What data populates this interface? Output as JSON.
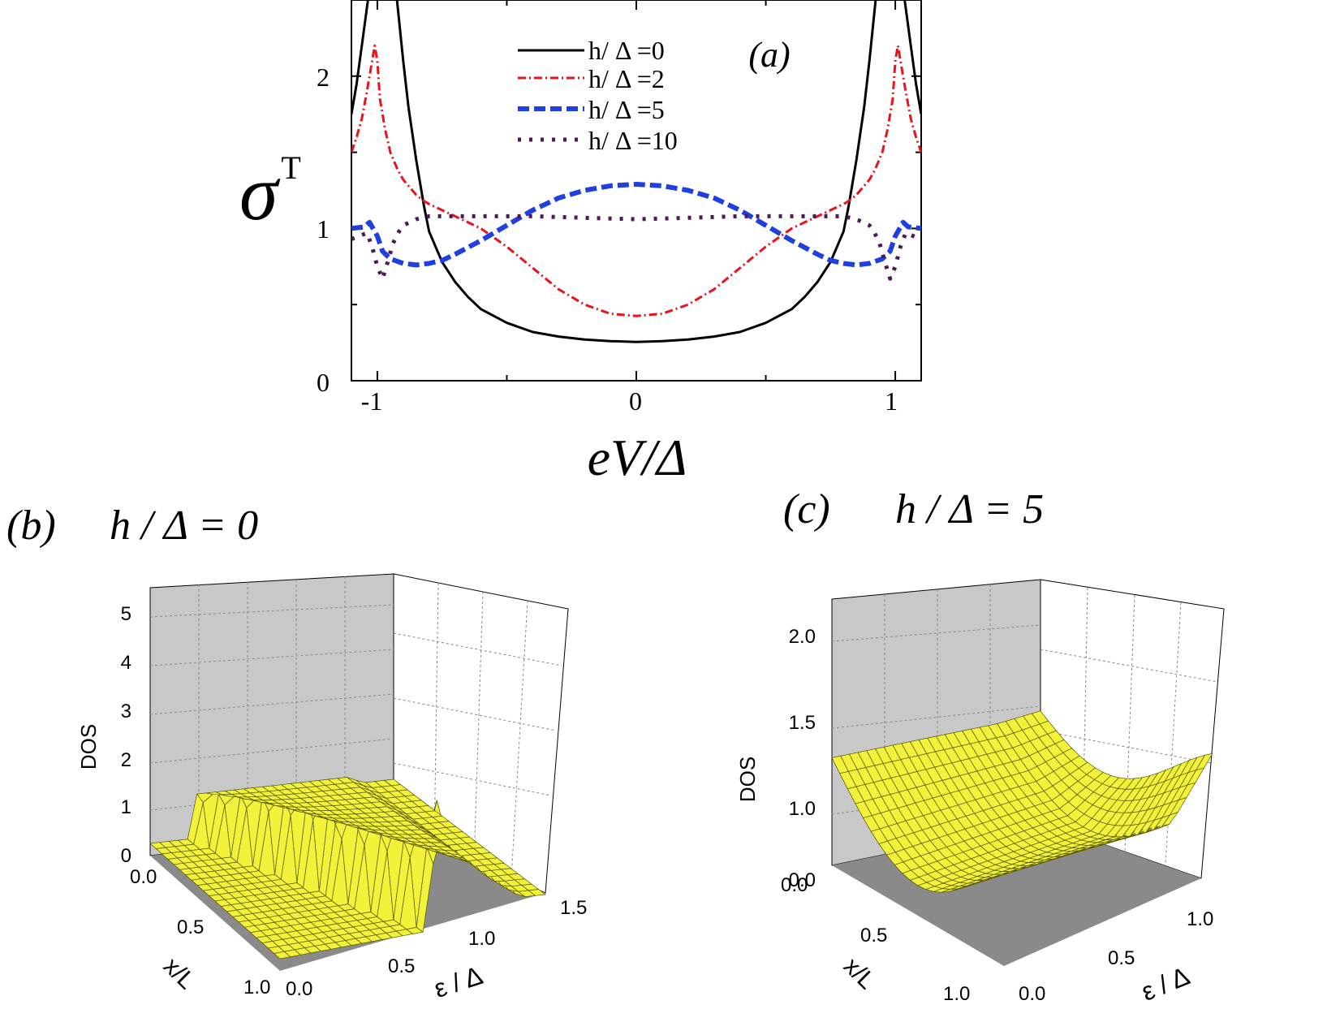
{
  "chart_data": [
    {
      "panel": "(a)",
      "type": "line",
      "panel_label": "(a)",
      "xlabel": "eV/Δ",
      "ylabel": "σ",
      "ylabel_sub": "T",
      "xlim": [
        -1.1,
        1.1
      ],
      "ylim": [
        0,
        2.5
      ],
      "xticks": [
        -1,
        0,
        1
      ],
      "xtick_labels": [
        "-1",
        "0",
        "1"
      ],
      "yticks": [
        0,
        1,
        2
      ],
      "ytick_labels": [
        "0",
        "1",
        "2"
      ],
      "legend_position": "top-center",
      "series": [
        {
          "name": "h/ Δ =0",
          "color": "#000000",
          "style": "solid",
          "x": [
            -1.1,
            -1.08,
            -1.06,
            -1.04,
            -1.02,
            -1.0,
            -0.97,
            -0.95,
            -0.93,
            -0.9,
            -0.88,
            -0.85,
            -0.82,
            -0.8,
            -0.77,
            -0.75,
            -0.7,
            -0.65,
            -0.6,
            -0.5,
            -0.4,
            -0.3,
            -0.2,
            -0.1,
            0.0,
            0.1,
            0.2,
            0.3,
            0.4,
            0.5,
            0.6,
            0.65,
            0.7,
            0.75,
            0.77,
            0.8,
            0.82,
            0.85,
            0.88,
            0.9,
            0.93,
            0.95,
            0.97,
            1.0,
            1.02,
            1.04,
            1.06,
            1.08,
            1.1
          ],
          "y": [
            1.75,
            1.95,
            2.2,
            2.45,
            2.7,
            3.0,
            3.2,
            2.9,
            2.6,
            2.1,
            1.8,
            1.45,
            1.15,
            0.98,
            0.86,
            0.78,
            0.65,
            0.55,
            0.47,
            0.38,
            0.32,
            0.29,
            0.27,
            0.26,
            0.255,
            0.26,
            0.27,
            0.29,
            0.32,
            0.38,
            0.47,
            0.55,
            0.65,
            0.78,
            0.86,
            0.98,
            1.15,
            1.45,
            1.8,
            2.1,
            2.6,
            2.9,
            3.2,
            3.0,
            2.7,
            2.45,
            2.2,
            1.95,
            1.75
          ]
        },
        {
          "name": "h/ Δ =2",
          "color": "#e8141b",
          "style": "dash-dot",
          "x": [
            -1.1,
            -1.08,
            -1.06,
            -1.04,
            -1.02,
            -1.01,
            -1.0,
            -0.99,
            -0.97,
            -0.95,
            -0.92,
            -0.9,
            -0.87,
            -0.85,
            -0.82,
            -0.8,
            -0.75,
            -0.7,
            -0.65,
            -0.6,
            -0.5,
            -0.4,
            -0.3,
            -0.2,
            -0.1,
            0.0,
            0.1,
            0.2,
            0.3,
            0.4,
            0.5,
            0.6,
            0.65,
            0.7,
            0.75,
            0.8,
            0.82,
            0.85,
            0.87,
            0.9,
            0.92,
            0.95,
            0.97,
            0.99,
            1.0,
            1.01,
            1.02,
            1.04,
            1.06,
            1.08,
            1.1
          ],
          "y": [
            1.5,
            1.6,
            1.72,
            1.9,
            2.1,
            2.2,
            2.1,
            1.85,
            1.65,
            1.5,
            1.38,
            1.32,
            1.26,
            1.22,
            1.18,
            1.16,
            1.12,
            1.08,
            1.04,
            1.0,
            0.88,
            0.74,
            0.6,
            0.5,
            0.44,
            0.425,
            0.44,
            0.5,
            0.6,
            0.74,
            0.88,
            1.0,
            1.04,
            1.08,
            1.12,
            1.16,
            1.18,
            1.22,
            1.26,
            1.32,
            1.38,
            1.5,
            1.65,
            1.85,
            2.1,
            2.2,
            2.1,
            1.9,
            1.72,
            1.6,
            1.5
          ]
        },
        {
          "name": "h/ Δ =5",
          "color": "#1f3fe0",
          "style": "dashed",
          "x": [
            -1.1,
            -1.05,
            -1.03,
            -1.0,
            -0.98,
            -0.95,
            -0.9,
            -0.85,
            -0.8,
            -0.75,
            -0.7,
            -0.6,
            -0.5,
            -0.4,
            -0.3,
            -0.2,
            -0.1,
            0.0,
            0.1,
            0.2,
            0.3,
            0.4,
            0.5,
            0.6,
            0.7,
            0.75,
            0.8,
            0.85,
            0.9,
            0.95,
            0.98,
            1.0,
            1.03,
            1.05,
            1.1
          ],
          "y": [
            1.0,
            1.01,
            1.04,
            0.95,
            0.85,
            0.8,
            0.77,
            0.76,
            0.77,
            0.79,
            0.83,
            0.92,
            1.02,
            1.12,
            1.2,
            1.25,
            1.28,
            1.29,
            1.28,
            1.25,
            1.2,
            1.12,
            1.02,
            0.92,
            0.83,
            0.79,
            0.77,
            0.76,
            0.77,
            0.8,
            0.85,
            0.95,
            1.04,
            1.01,
            1.0
          ]
        },
        {
          "name": "h/ Δ =10",
          "color": "#4a1a55",
          "style": "dotted",
          "x": [
            -1.1,
            -1.07,
            -1.04,
            -1.02,
            -1.0,
            -0.98,
            -0.96,
            -0.94,
            -0.92,
            -0.9,
            -0.85,
            -0.8,
            -0.6,
            -0.4,
            -0.2,
            0.0,
            0.2,
            0.4,
            0.6,
            0.8,
            0.85,
            0.9,
            0.92,
            0.94,
            0.96,
            0.98,
            1.0,
            1.02,
            1.04,
            1.07,
            1.1
          ],
          "y": [
            0.93,
            0.95,
            0.97,
            0.88,
            0.75,
            0.67,
            0.78,
            0.9,
            0.97,
            1.02,
            1.06,
            1.08,
            1.08,
            1.08,
            1.07,
            1.06,
            1.07,
            1.08,
            1.08,
            1.08,
            1.06,
            1.02,
            0.97,
            0.9,
            0.78,
            0.67,
            0.75,
            0.88,
            0.97,
            0.95,
            0.93
          ]
        }
      ]
    },
    {
      "panel": "(b)",
      "type": "surface",
      "panel_label": "(b)",
      "panel_title": "h / Δ = 0",
      "zlabel": "DOS",
      "xlabel": "x/L",
      "ylabel": "ε / Δ",
      "zticks": [
        "0",
        "1",
        "2",
        "3",
        "4",
        "5"
      ],
      "xticks": [
        "0.0",
        "0.5",
        "1.0"
      ],
      "yticks": [
        "0.0",
        "0.5",
        "1.0",
        "1.5"
      ],
      "xlim": [
        0,
        1
      ],
      "ylim": [
        0,
        1.5
      ],
      "zlim": [
        0,
        5
      ]
    },
    {
      "panel": "(c)",
      "type": "surface",
      "panel_label": "(c)",
      "panel_title": "h / Δ = 5",
      "zlabel": "DOS",
      "xlabel": "x/L",
      "ylabel": "ε / Δ",
      "zticks": [
        "0.0",
        "1.0",
        "1.5",
        "2.0"
      ],
      "xticks": [
        "0.0",
        "0.5",
        "1.0"
      ],
      "yticks": [
        "0.0",
        "0.5",
        "1.0"
      ],
      "xlim": [
        0,
        1
      ],
      "ylim": [
        0,
        1
      ],
      "zlim": [
        0,
        2
      ]
    }
  ],
  "colors": {
    "surface_fill": "#f2f23a",
    "surface_edge": "#555500",
    "back_wall": "#c8c8c8",
    "floor": "#8a8a8a"
  }
}
